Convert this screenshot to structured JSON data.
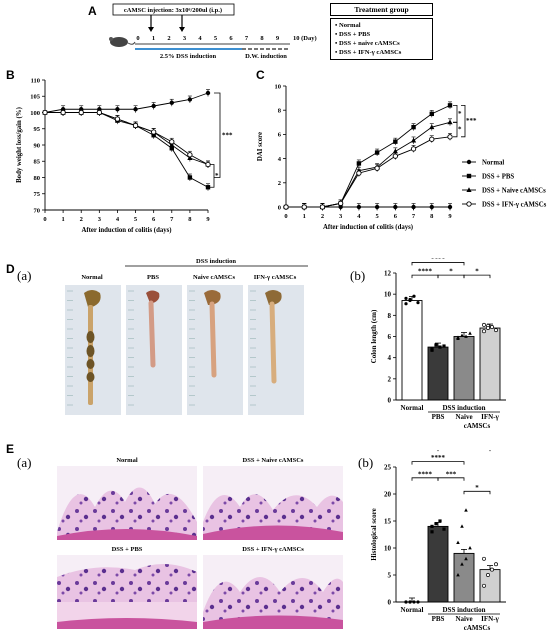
{
  "panels": {
    "A": "A",
    "B": "B",
    "C": "C",
    "D": "D",
    "E": "E",
    "Da": "(a)",
    "Db": "(b)",
    "Ea": "(a)",
    "Eb": "(b)"
  },
  "timeline": {
    "injection_label": "cAMSC injection: 3x10⁶/200ul (i.p.)",
    "days": [
      "0",
      "1",
      "2",
      "3",
      "4",
      "5",
      "6",
      "7",
      "8",
      "9",
      "10 (Day)"
    ],
    "dss_label": "2.5% DSS induction",
    "dw_label": "D.W. induction"
  },
  "treatment_group": {
    "title": "Treatment group",
    "items": [
      "Normal",
      "DSS + PBS",
      "DSS + naive cAMSCs",
      "DSS + IFN-γ cAMSCs"
    ]
  },
  "legend_C": [
    "Normal",
    "DSS + PBS",
    "DSS + Naive cAMSCs",
    "DSS + IFN-γ cAMSCs"
  ],
  "panel_D": {
    "group_header": "DSS induction",
    "photo_labels": [
      "Normal",
      "PBS",
      "Naive cAMSCs",
      "IFN-γ cAMSCs"
    ]
  },
  "panel_E": {
    "image_labels": [
      "Normal",
      "DSS + Naive cAMSCs",
      "DSS + PBS",
      "DSS + IFN-γ cAMSCs"
    ]
  },
  "chart_data": [
    {
      "id": "B",
      "type": "line",
      "xlabel": "After induction of colitis (days)",
      "ylabel": "Body weight loss/gain (%)",
      "xlim": [
        0,
        9
      ],
      "ylim": [
        70,
        110
      ],
      "x_ticks": [
        0,
        1,
        2,
        3,
        4,
        5,
        6,
        7,
        8,
        9
      ],
      "y_ticks": [
        70,
        75,
        80,
        85,
        90,
        95,
        100,
        105,
        110
      ],
      "x": [
        0,
        1,
        2,
        3,
        4,
        5,
        6,
        7,
        8,
        9
      ],
      "series": [
        {
          "marker": "circle",
          "values": [
            100,
            101,
            101,
            101,
            101,
            101,
            102,
            103,
            104,
            106
          ]
        },
        {
          "marker": "square",
          "values": [
            100,
            100,
            100,
            100,
            97.5,
            96,
            93,
            89,
            80,
            77
          ]
        },
        {
          "marker": "triangle",
          "values": [
            100,
            100,
            100,
            100,
            98,
            96,
            94,
            90,
            86,
            84
          ]
        },
        {
          "marker": "open",
          "values": [
            100,
            100,
            100,
            100,
            98,
            96,
            94,
            91,
            87,
            84
          ]
        }
      ],
      "annotations": [
        "***",
        "*"
      ]
    },
    {
      "id": "C",
      "type": "line",
      "xlabel": "After induction of colitis (days)",
      "ylabel": "DAI score",
      "xlim": [
        0,
        9
      ],
      "ylim": [
        0,
        10
      ],
      "x_ticks": [
        0,
        1,
        2,
        3,
        4,
        5,
        6,
        7,
        8,
        9
      ],
      "y_ticks": [
        0,
        2,
        4,
        6,
        8,
        10
      ],
      "x": [
        0,
        1,
        2,
        3,
        4,
        5,
        6,
        7,
        8,
        9
      ],
      "series": [
        {
          "marker": "circle",
          "values": [
            0,
            0,
            0,
            0,
            0,
            0,
            0,
            0,
            0,
            0
          ]
        },
        {
          "marker": "square",
          "values": [
            0,
            0,
            0,
            0.3,
            3.6,
            4.5,
            5.4,
            6.6,
            7.7,
            8.4
          ]
        },
        {
          "marker": "triangle",
          "values": [
            0,
            0,
            0,
            0.3,
            3.0,
            3.3,
            4.6,
            5.5,
            6.6,
            7.0
          ]
        },
        {
          "marker": "open",
          "values": [
            0,
            0,
            0,
            0.3,
            2.8,
            3.2,
            4.2,
            4.8,
            5.6,
            5.8
          ]
        }
      ],
      "annotations": [
        "*",
        "*",
        "***"
      ]
    },
    {
      "id": "Db",
      "type": "bar",
      "ylabel": "Colon length (cm)",
      "ylim": [
        0,
        12
      ],
      "y_ticks": [
        0,
        2,
        4,
        6,
        8,
        10,
        12
      ],
      "categories": [
        "Normal",
        "PBS",
        "Naive",
        "IFN-γ"
      ],
      "values": [
        9.4,
        5.0,
        6.0,
        6.8
      ],
      "group_label": "DSS induction",
      "sub_label": "cAMSCs",
      "significance": [
        "****",
        "****",
        "****",
        "****",
        "*",
        "*"
      ]
    },
    {
      "id": "Eb",
      "type": "bar",
      "ylabel": "Histological score",
      "ylim": [
        0,
        25
      ],
      "y_ticks": [
        0,
        5,
        10,
        15,
        20,
        25
      ],
      "categories": [
        "Normal",
        "PBS",
        "Naive",
        "IFN-γ"
      ],
      "values": [
        0,
        14,
        9,
        6
      ],
      "group_label": "DSS induction",
      "sub_label": "cAMSCs",
      "significance": [
        "****",
        "****",
        "****",
        "****",
        "***",
        "*"
      ]
    }
  ]
}
